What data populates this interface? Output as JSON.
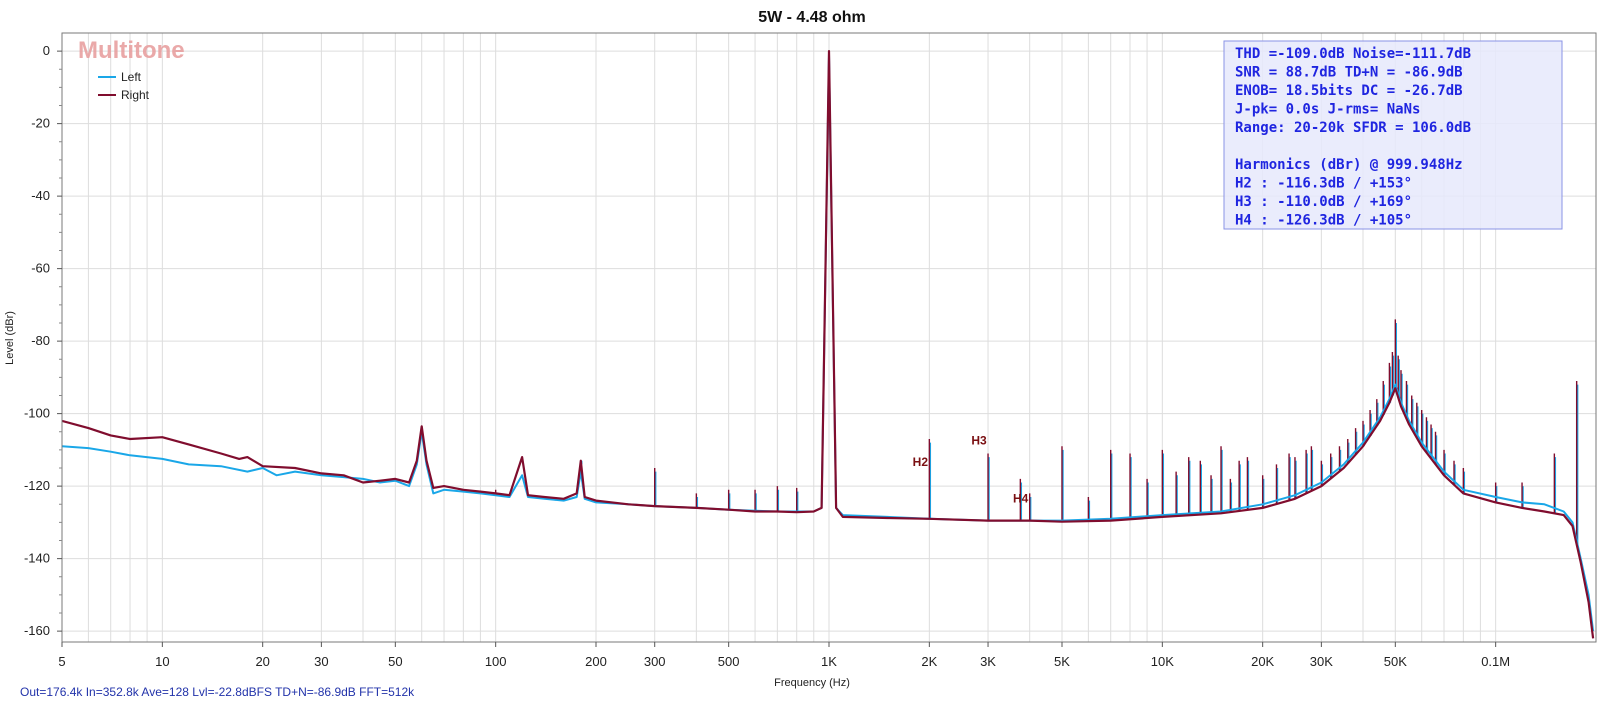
{
  "chart_data": {
    "type": "line",
    "title": "5W - 4.48 ohm",
    "watermark": "Multitone",
    "xlabel": "Frequency (Hz)",
    "ylabel": "Level (dBr)",
    "x_scale": "log",
    "xlim": [
      5,
      200000
    ],
    "ylim": [
      -163,
      5
    ],
    "grid": true,
    "legend_position": "top-left",
    "x_ticks": [
      {
        "v": 5,
        "label": "5"
      },
      {
        "v": 10,
        "label": "10"
      },
      {
        "v": 20,
        "label": "20"
      },
      {
        "v": 30,
        "label": "30"
      },
      {
        "v": 50,
        "label": "50"
      },
      {
        "v": 100,
        "label": "100"
      },
      {
        "v": 200,
        "label": "200"
      },
      {
        "v": 300,
        "label": "300"
      },
      {
        "v": 500,
        "label": "500"
      },
      {
        "v": 1000,
        "label": "1K"
      },
      {
        "v": 2000,
        "label": "2K"
      },
      {
        "v": 3000,
        "label": "3K"
      },
      {
        "v": 5000,
        "label": "5K"
      },
      {
        "v": 10000,
        "label": "10K"
      },
      {
        "v": 20000,
        "label": "20K"
      },
      {
        "v": 30000,
        "label": "30K"
      },
      {
        "v": 50000,
        "label": "50K"
      },
      {
        "v": 100000,
        "label": "0.1M"
      }
    ],
    "y_ticks": [
      0,
      -20,
      -40,
      -60,
      -80,
      -100,
      -120,
      -140,
      -160
    ],
    "series": [
      {
        "name": "Left",
        "color": "#1aa7e8",
        "points": [
          [
            5,
            -109
          ],
          [
            6,
            -109.5
          ],
          [
            7,
            -110.5
          ],
          [
            8,
            -111.5
          ],
          [
            10,
            -112.5
          ],
          [
            12,
            -114
          ],
          [
            15,
            -114.5
          ],
          [
            18,
            -116
          ],
          [
            20,
            -115
          ],
          [
            22,
            -117
          ],
          [
            25,
            -116
          ],
          [
            30,
            -117
          ],
          [
            35,
            -117.5
          ],
          [
            40,
            -118
          ],
          [
            45,
            -119
          ],
          [
            50,
            -118.5
          ],
          [
            55,
            -120
          ],
          [
            58,
            -114
          ],
          [
            60,
            -105
          ],
          [
            62,
            -114
          ],
          [
            65,
            -122
          ],
          [
            70,
            -121
          ],
          [
            80,
            -121.5
          ],
          [
            90,
            -122
          ],
          [
            100,
            -122.5
          ],
          [
            110,
            -123
          ],
          [
            120,
            -117
          ],
          [
            125,
            -123
          ],
          [
            140,
            -123.5
          ],
          [
            160,
            -124
          ],
          [
            175,
            -123
          ],
          [
            180,
            -116
          ],
          [
            185,
            -123.5
          ],
          [
            200,
            -124.5
          ],
          [
            250,
            -125
          ],
          [
            300,
            -125.5
          ],
          [
            400,
            -126
          ],
          [
            500,
            -126.5
          ],
          [
            600,
            -126.8
          ],
          [
            700,
            -127
          ],
          [
            800,
            -127
          ],
          [
            900,
            -127
          ],
          [
            950,
            -126
          ],
          [
            1000,
            -1
          ],
          [
            1050,
            -126
          ],
          [
            1100,
            -128
          ],
          [
            1500,
            -128.5
          ],
          [
            2000,
            -129
          ],
          [
            3000,
            -129.5
          ],
          [
            4000,
            -129.5
          ],
          [
            5000,
            -129.5
          ],
          [
            7000,
            -129
          ],
          [
            10000,
            -128
          ],
          [
            15000,
            -127
          ],
          [
            20000,
            -125
          ],
          [
            25000,
            -122.5
          ],
          [
            30000,
            -119
          ],
          [
            35000,
            -114
          ],
          [
            40000,
            -108
          ],
          [
            45000,
            -101
          ],
          [
            48000,
            -96
          ],
          [
            50000,
            -92
          ],
          [
            52000,
            -97
          ],
          [
            55000,
            -102
          ],
          [
            60000,
            -108
          ],
          [
            70000,
            -116
          ],
          [
            80000,
            -121
          ],
          [
            100000,
            -123
          ],
          [
            120000,
            -124.5
          ],
          [
            140000,
            -125
          ],
          [
            160000,
            -127
          ],
          [
            170000,
            -130
          ],
          [
            180000,
            -140
          ],
          [
            190000,
            -150
          ],
          [
            196000,
            -160
          ]
        ]
      },
      {
        "name": "Right",
        "color": "#800d2e",
        "points": [
          [
            5,
            -102
          ],
          [
            6,
            -104
          ],
          [
            7,
            -106
          ],
          [
            8,
            -107
          ],
          [
            10,
            -106.5
          ],
          [
            12,
            -108.5
          ],
          [
            15,
            -111
          ],
          [
            17,
            -112.5
          ],
          [
            18,
            -112
          ],
          [
            20,
            -114.5
          ],
          [
            25,
            -115
          ],
          [
            30,
            -116.5
          ],
          [
            35,
            -117
          ],
          [
            40,
            -119
          ],
          [
            45,
            -118.5
          ],
          [
            50,
            -118
          ],
          [
            55,
            -119
          ],
          [
            58,
            -113
          ],
          [
            60,
            -103.5
          ],
          [
            62,
            -113
          ],
          [
            65,
            -120.5
          ],
          [
            70,
            -120
          ],
          [
            80,
            -121
          ],
          [
            90,
            -121.5
          ],
          [
            100,
            -122
          ],
          [
            110,
            -122.5
          ],
          [
            120,
            -112
          ],
          [
            125,
            -122.5
          ],
          [
            140,
            -123
          ],
          [
            160,
            -123.5
          ],
          [
            175,
            -122
          ],
          [
            180,
            -113
          ],
          [
            185,
            -123
          ],
          [
            200,
            -124
          ],
          [
            250,
            -125
          ],
          [
            300,
            -125.5
          ],
          [
            400,
            -126
          ],
          [
            500,
            -126.5
          ],
          [
            600,
            -127
          ],
          [
            700,
            -127
          ],
          [
            800,
            -127.2
          ],
          [
            900,
            -127
          ],
          [
            950,
            -126
          ],
          [
            1000,
            0
          ],
          [
            1050,
            -126
          ],
          [
            1100,
            -128.5
          ],
          [
            1500,
            -128.8
          ],
          [
            2000,
            -129
          ],
          [
            3000,
            -129.5
          ],
          [
            4000,
            -129.5
          ],
          [
            5000,
            -129.8
          ],
          [
            7000,
            -129.5
          ],
          [
            10000,
            -128.5
          ],
          [
            15000,
            -127.5
          ],
          [
            20000,
            -126
          ],
          [
            25000,
            -123.5
          ],
          [
            30000,
            -120
          ],
          [
            35000,
            -115
          ],
          [
            40000,
            -109
          ],
          [
            45000,
            -102
          ],
          [
            48000,
            -97
          ],
          [
            50000,
            -93
          ],
          [
            52000,
            -98
          ],
          [
            55000,
            -103
          ],
          [
            60000,
            -109
          ],
          [
            70000,
            -117
          ],
          [
            80000,
            -122
          ],
          [
            100000,
            -124.5
          ],
          [
            120000,
            -126
          ],
          [
            140000,
            -127
          ],
          [
            160000,
            -128
          ],
          [
            170000,
            -131
          ],
          [
            180000,
            -141
          ],
          [
            190000,
            -152
          ],
          [
            196000,
            -162
          ]
        ]
      }
    ],
    "spurs": [
      [
        100,
        -121
      ],
      [
        150,
        -123
      ],
      [
        180,
        -113
      ],
      [
        300,
        -115
      ],
      [
        400,
        -122
      ],
      [
        500,
        -121
      ],
      [
        600,
        -121
      ],
      [
        700,
        -120
      ],
      [
        800,
        -120.5
      ],
      [
        2000,
        -107
      ],
      [
        3000,
        -111
      ],
      [
        3750,
        -118
      ],
      [
        4000,
        -122
      ],
      [
        5000,
        -109
      ],
      [
        6000,
        -123
      ],
      [
        7000,
        -110
      ],
      [
        8000,
        -111
      ],
      [
        9000,
        -118
      ],
      [
        10000,
        -110
      ],
      [
        11000,
        -116
      ],
      [
        12000,
        -112
      ],
      [
        13000,
        -113
      ],
      [
        14000,
        -117
      ],
      [
        15000,
        -109
      ],
      [
        16000,
        -118
      ],
      [
        17000,
        -113
      ],
      [
        18000,
        -112
      ],
      [
        20000,
        -117
      ],
      [
        22000,
        -114
      ],
      [
        24000,
        -111
      ],
      [
        25000,
        -112
      ],
      [
        27000,
        -110
      ],
      [
        28000,
        -109
      ],
      [
        30000,
        -113
      ],
      [
        32000,
        -111
      ],
      [
        34000,
        -109
      ],
      [
        36000,
        -107
      ],
      [
        38000,
        -104
      ],
      [
        40000,
        -102
      ],
      [
        42000,
        -99
      ],
      [
        44000,
        -96
      ],
      [
        46000,
        -91
      ],
      [
        48000,
        -86
      ],
      [
        49000,
        -83
      ],
      [
        50000,
        -74
      ],
      [
        51000,
        -84
      ],
      [
        52000,
        -88
      ],
      [
        54000,
        -91
      ],
      [
        56000,
        -95
      ],
      [
        58000,
        -97
      ],
      [
        60000,
        -99
      ],
      [
        62000,
        -101
      ],
      [
        64000,
        -103
      ],
      [
        66000,
        -105
      ],
      [
        70000,
        -110
      ],
      [
        75000,
        -113
      ],
      [
        80000,
        -115
      ],
      [
        100000,
        -119
      ],
      [
        120000,
        -119
      ],
      [
        150000,
        -111
      ],
      [
        175000,
        -91
      ]
    ],
    "annotations": [
      {
        "label": "H2",
        "x": 2000,
        "y": -114.5
      },
      {
        "label": "H3",
        "x": 3000,
        "y": -108.5
      },
      {
        "label": "H4",
        "x": 4000,
        "y": -124.5
      }
    ],
    "stats_box": [
      "THD =-109.0dB      Noise=-111.7dB",
      "SNR =  88.7dB      TD+N = -86.9dB",
      "ENOB=  18.5bits    DC   = -26.7dB",
      "J-pk=   0.0s     J-rms=   NaNs",
      "Range: 20-20k      SFDR = 106.0dB",
      "",
      "Harmonics (dBr) @ 999.948Hz",
      "H2 :  -116.3dB / +153°",
      "H3 :  -110.0dB / +169°",
      "H4 :  -126.3dB / +105°"
    ],
    "footer": "Out=176.4k In=352.8k Ave=128 Lvl=-22.8dBFS TD+N=-86.9dB FFT=512k"
  }
}
